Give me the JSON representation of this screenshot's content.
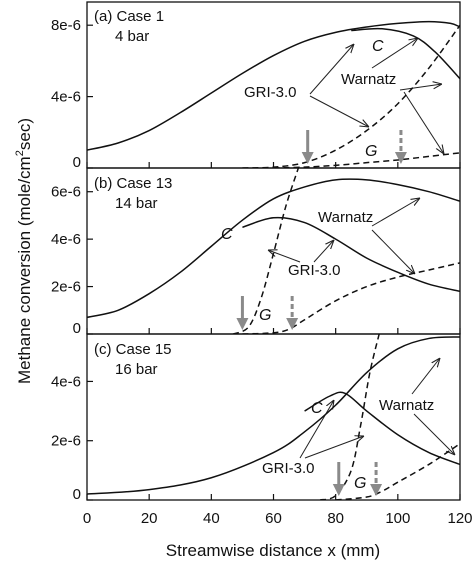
{
  "chart_data": {
    "type": "line",
    "xlabel": "Streamwise distance x (mm)",
    "ylabel_main": "Methane conversion (mole/cm",
    "ylabel_sup": "2",
    "ylabel_end": "sec)",
    "x_ticks": [
      "0",
      "20",
      "40",
      "60",
      "80",
      "100",
      "120"
    ],
    "xlim": [
      0,
      120
    ],
    "grid": false,
    "series_labels": {
      "C": "C",
      "G": "G",
      "warnatz": "Warnatz",
      "gri": "GRI-3.0"
    },
    "panels": [
      {
        "id": "a",
        "label_line1": "(a) Case ",
        "label_case": "1",
        "label_line2": "4 bar",
        "ylim": [
          0,
          9.3e-06
        ],
        "y_ticks": [
          {
            "value": 0,
            "label": "0"
          },
          {
            "value": 4e-06,
            "label": "4e-6"
          },
          {
            "value": 8e-06,
            "label": "8e-6"
          }
        ],
        "C_warnatz": [
          [
            0,
            1e-06
          ],
          [
            10,
            1.4e-06
          ],
          [
            20,
            2.1e-06
          ],
          [
            30,
            3.1e-06
          ],
          [
            40,
            4.2e-06
          ],
          [
            50,
            5.3e-06
          ],
          [
            60,
            6.3e-06
          ],
          [
            70,
            7.1e-06
          ],
          [
            80,
            7.6e-06
          ],
          [
            90,
            7.9e-06
          ],
          [
            100,
            8.1e-06
          ],
          [
            110,
            8.2e-06
          ],
          [
            117,
            8.1e-06
          ],
          [
            120,
            7.9e-06
          ]
        ],
        "C_gri": [
          [
            85,
            7.7e-06
          ],
          [
            95,
            7.8e-06
          ],
          [
            105,
            7.4e-06
          ],
          [
            112,
            6.5e-06
          ],
          [
            120,
            5e-06
          ]
        ],
        "G_warnatz": [
          [
            60,
            0.0
          ],
          [
            70,
            5e-08
          ],
          [
            80,
            1.5e-07
          ],
          [
            90,
            3e-07
          ],
          [
            100,
            4.5e-07
          ],
          [
            110,
            6.5e-07
          ],
          [
            120,
            8.5e-07
          ]
        ],
        "G_gri": [
          [
            50,
            0.0
          ],
          [
            60,
            5e-08
          ],
          [
            70,
            3e-07
          ],
          [
            80,
            1e-06
          ],
          [
            90,
            2.1e-06
          ],
          [
            100,
            3.6e-06
          ],
          [
            110,
            5.6e-06
          ],
          [
            120,
            8e-06
          ]
        ],
        "arrow_solid_x": 71,
        "arrow_dashed_x": 101,
        "G_label_x": 90,
        "C_label_x": 104
      },
      {
        "id": "b",
        "label_line1": "(b) Case ",
        "label_case": "13",
        "label_line2": "14 bar",
        "ylim": [
          0,
          7e-06
        ],
        "y_ticks": [
          {
            "value": 0,
            "label": "0"
          },
          {
            "value": 2e-06,
            "label": "2e-6"
          },
          {
            "value": 4e-06,
            "label": "4e-6"
          },
          {
            "value": 6e-06,
            "label": "6e-6"
          }
        ],
        "C_warnatz": [
          [
            0,
            7e-07
          ],
          [
            10,
            1e-06
          ],
          [
            20,
            1.7e-06
          ],
          [
            30,
            2.6e-06
          ],
          [
            40,
            3.7e-06
          ],
          [
            50,
            4.8e-06
          ],
          [
            60,
            5.7e-06
          ],
          [
            70,
            6.2e-06
          ],
          [
            80,
            6.5e-06
          ],
          [
            90,
            6.5e-06
          ],
          [
            100,
            6.3e-06
          ],
          [
            110,
            6e-06
          ],
          [
            120,
            5.6e-06
          ]
        ],
        "C_gri": [
          [
            50,
            4.5e-06
          ],
          [
            60,
            4.9e-06
          ],
          [
            70,
            4.7e-06
          ],
          [
            80,
            4e-06
          ],
          [
            90,
            3.2e-06
          ],
          [
            100,
            2.6e-06
          ],
          [
            110,
            2.1e-06
          ],
          [
            120,
            1.8e-06
          ]
        ],
        "G_warnatz": [
          [
            50,
            0.0
          ],
          [
            60,
            5e-08
          ],
          [
            65,
            2e-07
          ],
          [
            70,
            6e-07
          ],
          [
            80,
            1.4e-06
          ],
          [
            90,
            2e-06
          ],
          [
            100,
            2.4e-06
          ],
          [
            110,
            2.7e-06
          ],
          [
            120,
            3e-06
          ]
        ],
        "G_gri": [
          [
            47,
            0.0
          ],
          [
            52,
            3e-07
          ],
          [
            56,
            1.5e-06
          ],
          [
            60,
            3.4e-06
          ],
          [
            64,
            5.4e-06
          ],
          [
            68,
            7e-06
          ]
        ],
        "arrow_solid_x": 50,
        "arrow_dashed_x": 66,
        "G_label_x": 58,
        "C_label_x": 46
      },
      {
        "id": "c",
        "label_line1": "(c) Case ",
        "label_case": "15",
        "label_line2": "16 bar",
        "ylim": [
          0,
          5.6e-06
        ],
        "y_ticks": [
          {
            "value": 0,
            "label": "0"
          },
          {
            "value": 2e-06,
            "label": "2e-6"
          },
          {
            "value": 4e-06,
            "label": "4e-6"
          }
        ],
        "C_warnatz": [
          [
            0,
            2e-07
          ],
          [
            20,
            3.5e-07
          ],
          [
            40,
            7.5e-07
          ],
          [
            60,
            1.6e-06
          ],
          [
            70,
            2.3e-06
          ],
          [
            80,
            3.2e-06
          ],
          [
            90,
            4.3e-06
          ],
          [
            100,
            5.1e-06
          ],
          [
            110,
            5.45e-06
          ],
          [
            120,
            5.5e-06
          ]
        ],
        "C_gri": [
          [
            70,
            3e-06
          ],
          [
            78,
            3.5e-06
          ],
          [
            83,
            3.6e-06
          ],
          [
            90,
            3e-06
          ],
          [
            100,
            2.2e-06
          ],
          [
            110,
            1.6e-06
          ],
          [
            120,
            1.2e-06
          ]
        ],
        "G_warnatz": [
          [
            80,
            0.0
          ],
          [
            90,
            1e-07
          ],
          [
            95,
            3e-07
          ],
          [
            100,
            6e-07
          ],
          [
            110,
            1.2e-06
          ],
          [
            120,
            1.9e-06
          ]
        ],
        "G_gri": [
          [
            75,
            0.0
          ],
          [
            80,
            1.5e-07
          ],
          [
            85,
            1e-06
          ],
          [
            88,
            2.5e-06
          ],
          [
            91,
            4.3e-06
          ],
          [
            94,
            5.6e-06
          ]
        ],
        "arrow_solid_x": 81,
        "arrow_dashed_x": 93,
        "G_label_x": 88,
        "C_label_x": 75
      }
    ]
  }
}
